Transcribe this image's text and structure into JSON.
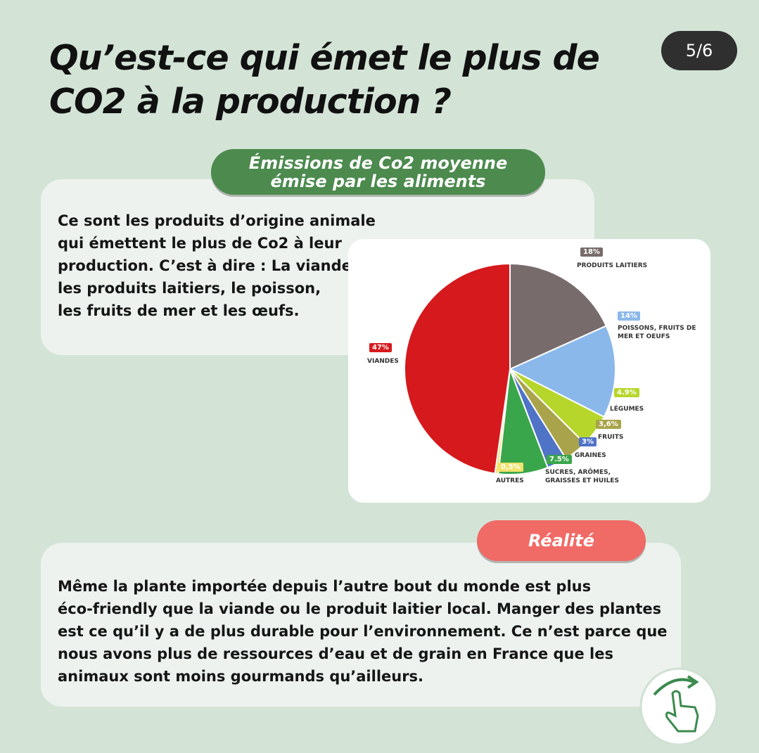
{
  "header": {
    "title_lines": [
      "Qu’est-ce qui émet le plus de",
      "CO2 à la production ?"
    ],
    "page": "5/6"
  },
  "section1": {
    "badge_lines": [
      "Émissions de Co2 moyenne",
      "émise par les aliments"
    ],
    "text_lines": [
      "Ce sont les produits d’origine animale",
      "qui émettent le plus de Co2 à leur",
      "production. C’est à dire : La viande,",
      "les produits laitiers, le poisson,",
      "les fruits de mer et les œufs."
    ]
  },
  "chart_data": {
    "type": "pie",
    "categories": [
      "PRODUITS LAITIERS",
      "POISSONS, FRUITS DE MER ET OEUFS",
      "LÉGUMES",
      "FRUITS",
      "GRAINES",
      "SUCRES, ARÔMES, GRAISSES ET HUILES",
      "AUTRES",
      "VIANDES"
    ],
    "values": [
      18,
      14,
      4.9,
      3.6,
      3,
      7.5,
      0.5,
      47
    ],
    "value_labels": [
      "18%",
      "14%",
      "4.9%",
      "3,6%",
      "3%",
      "7.5%",
      "0,5%",
      "47%"
    ],
    "colors": [
      "#786b6b",
      "#8bb8ea",
      "#b6d62c",
      "#a9a34b",
      "#4f73c6",
      "#3aa64b",
      "#f1e36c",
      "#d5191d"
    ]
  },
  "section2": {
    "badge": "Réalité",
    "text_lines": [
      "Même la plante importée depuis l’autre bout du monde est plus",
      "éco-friendly que la viande ou le produit laitier local. Manger des plantes",
      "est ce qu’il y a de plus durable pour l’environnement. Ce n’est parce que",
      "nous avons plus de ressources d’eau et de grain en France que les",
      "animaux sont moins gourmands qu’ailleurs."
    ]
  }
}
